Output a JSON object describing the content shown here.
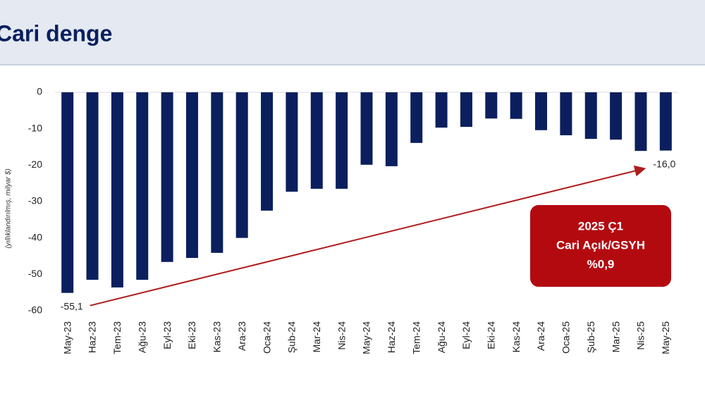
{
  "chart_data": {
    "type": "bar",
    "title": "Cari denge",
    "ylabel": "(yıllıklandırılmış, milyar $)",
    "categories": [
      "May-23",
      "Haz-23",
      "Tem-23",
      "Ağu-23",
      "Eyl-23",
      "Eki-23",
      "Kas-23",
      "Ara-23",
      "Oca-24",
      "Şub-24",
      "Mar-24",
      "Nis-24",
      "May-24",
      "Haz-24",
      "Tem-24",
      "Ağu-24",
      "Eyl-24",
      "Eki-24",
      "Kas-24",
      "Ara-24",
      "Oca-25",
      "Şub-25",
      "Mar-25",
      "Nis-25",
      "May-25"
    ],
    "values": [
      -55.1,
      -51.5,
      -53.6,
      -51.5,
      -46.6,
      -45.5,
      -44.1,
      -40,
      -32.5,
      -27.3,
      -26.5,
      -26.5,
      -19.9,
      -20.3,
      -13.9,
      -9.7,
      -9.5,
      -7.2,
      -7.3,
      -10.4,
      -11.8,
      -12.8,
      -13,
      -16.1,
      -16
    ],
    "value_labels": [
      "-55,1",
      null,
      null,
      null,
      null,
      null,
      null,
      null,
      null,
      null,
      null,
      null,
      null,
      null,
      null,
      null,
      null,
      null,
      null,
      null,
      null,
      null,
      null,
      null,
      "-16,0"
    ],
    "color": "#0b1f5e",
    "arrow_color": "#b01c1c",
    "ylim": [
      -60,
      0
    ],
    "yticks": [
      0,
      -10,
      -20,
      -30,
      -40,
      -50,
      -60
    ],
    "grid": false,
    "annotation": {
      "lines": [
        "2025 Ç1",
        "Cari Açık/GSYH",
        "%0,9"
      ],
      "color": "#b30a10"
    }
  }
}
